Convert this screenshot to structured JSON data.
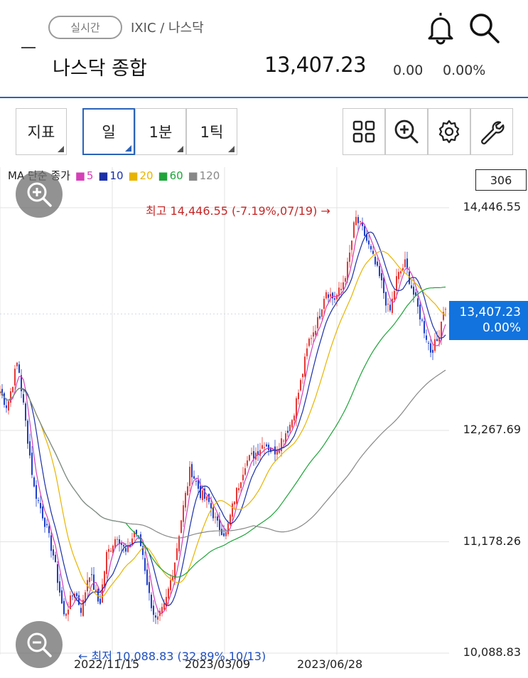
{
  "header": {
    "realtime_label": "실시간",
    "breadcrumb": "IXIC / 나스닥",
    "title": "나스닥 종합",
    "price": "13,407.23",
    "change": "0.00",
    "change_pct": "0.00%",
    "icons": [
      "menu-dash-icon",
      "bell-icon",
      "search-icon"
    ]
  },
  "toolbar": {
    "indicator_label": "지표",
    "day_label": "일",
    "min_label": "1분",
    "tick_label": "1틱",
    "icons": [
      "grid-icon",
      "zoom-in-icon",
      "gear-icon",
      "wrench-icon"
    ]
  },
  "legend": {
    "prefix": "MA 단순 종가",
    "items": [
      {
        "label": "5",
        "color": "#d63fb8"
      },
      {
        "label": "10",
        "color": "#1a2fa8"
      },
      {
        "label": "20",
        "color": "#e8b400"
      },
      {
        "label": "60",
        "color": "#1fa43a"
      },
      {
        "label": "120",
        "color": "#888888"
      }
    ]
  },
  "count_badge": "306",
  "axis": {
    "labels": [
      "14,446.55",
      "12,267.69",
      "11,178.26",
      "10,088.83"
    ],
    "current_price": "13,407.23",
    "current_pct": "0.00%"
  },
  "dates": [
    "2022/11/15",
    "2023/03/09",
    "2023/06/28"
  ],
  "high_annotation": "최고 14,446.55 (-7.19%,07/19) →",
  "low_annotation": "← 최저 10,088.83 (32.89%,10/13)",
  "chart_data": {
    "type": "line",
    "ylim": [
      10088.83,
      14446.55
    ],
    "colors": {
      "up": "#e53935",
      "down": "#1e40c8"
    },
    "keypoints": [
      [
        0,
        12650
      ],
      [
        10,
        12500
      ],
      [
        25,
        12950
      ],
      [
        35,
        12400
      ],
      [
        48,
        11700
      ],
      [
        62,
        11400
      ],
      [
        75,
        11050
      ],
      [
        90,
        10450
      ],
      [
        105,
        10700
      ],
      [
        115,
        10500
      ],
      [
        125,
        10900
      ],
      [
        140,
        10550
      ],
      [
        150,
        11050
      ],
      [
        165,
        11250
      ],
      [
        178,
        11050
      ],
      [
        190,
        11300
      ],
      [
        200,
        11100
      ],
      [
        210,
        10650
      ],
      [
        220,
        10380
      ],
      [
        232,
        10550
      ],
      [
        245,
        10950
      ],
      [
        255,
        11400
      ],
      [
        268,
        11900
      ],
      [
        282,
        11650
      ],
      [
        295,
        11550
      ],
      [
        305,
        11350
      ],
      [
        318,
        11250
      ],
      [
        330,
        11600
      ],
      [
        345,
        11950
      ],
      [
        360,
        12050
      ],
      [
        372,
        12150
      ],
      [
        385,
        12050
      ],
      [
        398,
        12200
      ],
      [
        410,
        12350
      ],
      [
        422,
        12700
      ],
      [
        435,
        13150
      ],
      [
        448,
        13350
      ],
      [
        458,
        13650
      ],
      [
        470,
        13550
      ],
      [
        480,
        13650
      ],
      [
        490,
        13900
      ],
      [
        500,
        14350
      ],
      [
        512,
        14200
      ],
      [
        525,
        13950
      ],
      [
        537,
        13700
      ],
      [
        548,
        13400
      ],
      [
        558,
        13750
      ],
      [
        570,
        13900
      ],
      [
        582,
        13600
      ],
      [
        595,
        13300
      ],
      [
        606,
        13050
      ],
      [
        616,
        13150
      ],
      [
        625,
        13500
      ],
      [
        628,
        13407.23
      ]
    ],
    "ma_windows": [
      5,
      10,
      20,
      60,
      120
    ]
  }
}
